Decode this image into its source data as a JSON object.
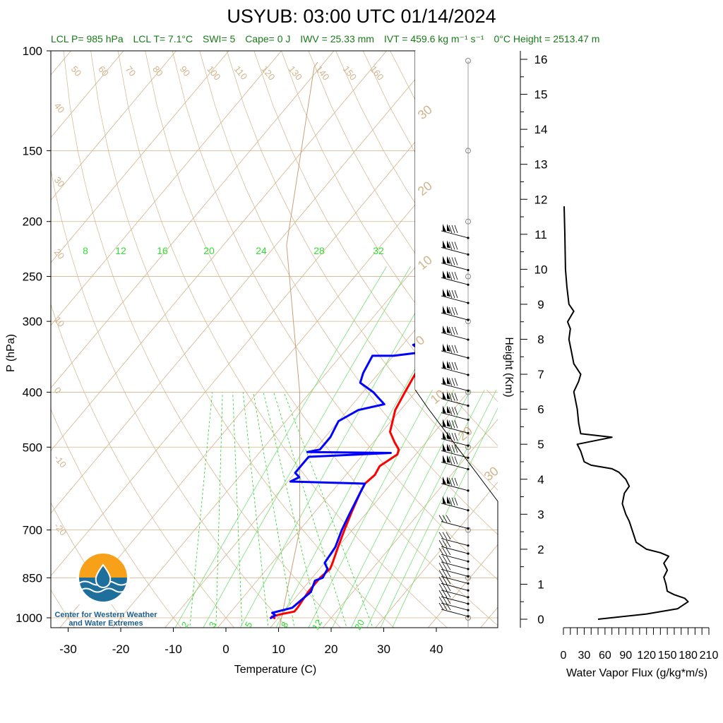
{
  "page": {
    "title": "USYUB: 03:00 UTC 01/14/2024",
    "stats": {
      "lcl_p": "LCL P= 985 hPa",
      "lcl_t": "LCL T= 7.1°C",
      "swi": "SWI= 5",
      "cape": "Cape= 0 J",
      "iwv": "IWV = 25.33 mm",
      "ivt": "IVT = 459.6 kg m⁻¹ s⁻¹",
      "freezing": "0°C Height = 2513.47 m"
    },
    "logo": {
      "line1": "Center for Western Weather",
      "line2": "and Water Extremes",
      "icon": "water-drop-logo-icon"
    },
    "colors": {
      "temperature": "#ff0000",
      "dewpoint": "#0000ff",
      "isotherm": "#d2b48c",
      "mixing_ratio": "#00cc00",
      "stats_text": "#1a7a1a"
    }
  },
  "chart_data": [
    {
      "type": "line",
      "subtype": "skew-t",
      "xlabel": "Temperature (C)",
      "ylabel": "P (hPa)",
      "xlim": [
        -35,
        52
      ],
      "ylim": [
        1050,
        100
      ],
      "y_scale": "log",
      "x_ticks": [
        -30,
        -20,
        -10,
        0,
        10,
        20,
        30,
        40
      ],
      "y_ticks": [
        100,
        150,
        200,
        250,
        300,
        400,
        500,
        700,
        850,
        1000
      ],
      "isotherm_labels_top": [
        50,
        60,
        70,
        80,
        90,
        100,
        110,
        120,
        130,
        140,
        150,
        160
      ],
      "isotherm_labels_left": [
        40,
        30,
        20,
        10,
        0,
        -10,
        -20
      ],
      "mixing_ratio_labels_top": [
        8,
        12,
        16,
        20,
        24,
        28,
        32
      ],
      "mixing_ratio_labels_bottom": [
        2,
        3,
        5,
        8,
        12,
        20
      ],
      "wind_speed_rings": [
        30,
        20,
        10,
        0,
        10,
        20,
        30
      ],
      "series": [
        {
          "name": "Temperature",
          "color": "#ff0000",
          "points": [
            [
              9.5,
              1003
            ],
            [
              8.5,
              995
            ],
            [
              10,
              985
            ],
            [
              12,
              975
            ],
            [
              12,
              960
            ],
            [
              11.5,
              900
            ],
            [
              11.5,
              850
            ],
            [
              12,
              820
            ],
            [
              11.5,
              800
            ],
            [
              10,
              750
            ],
            [
              8.5,
              700
            ],
            [
              7,
              650
            ],
            [
              5.5,
              600
            ],
            [
              5,
              580
            ],
            [
              5.5,
              560
            ],
            [
              5,
              540
            ],
            [
              6.5,
              515
            ],
            [
              6,
              505
            ],
            [
              4,
              490
            ],
            [
              1.5,
              470
            ],
            [
              -1,
              430
            ],
            [
              -2,
              400
            ],
            [
              -3,
              370
            ],
            [
              -3,
              350
            ],
            [
              -2.5,
              340
            ],
            [
              -3,
              320
            ],
            [
              -3.5,
              300
            ],
            [
              -4.5,
              280
            ],
            [
              -5.5,
              260
            ],
            [
              -5,
              245
            ],
            [
              -6.5,
              230
            ],
            [
              -7,
              218
            ],
            [
              -5,
              210
            ],
            [
              -3,
              207
            ],
            [
              -2,
              200
            ]
          ]
        },
        {
          "name": "Dewpoint",
          "color": "#0000ff",
          "points": [
            [
              8.5,
              1003
            ],
            [
              9,
              990
            ],
            [
              8,
              980
            ],
            [
              11,
              960
            ],
            [
              12,
              900
            ],
            [
              11,
              860
            ],
            [
              12,
              850
            ],
            [
              11.5,
              820
            ],
            [
              10,
              800
            ],
            [
              9.5,
              750
            ],
            [
              8,
              700
            ],
            [
              7,
              660
            ],
            [
              5.5,
              600
            ],
            [
              5,
              580
            ],
            [
              -9.5,
              575
            ],
            [
              -8.5,
              565
            ],
            [
              -10,
              555
            ],
            [
              -10,
              520
            ],
            [
              5,
              512
            ],
            [
              -11,
              510
            ],
            [
              -9,
              505
            ],
            [
              -9,
              480
            ],
            [
              -10,
              450
            ],
            [
              -8,
              430
            ],
            [
              -4,
              420
            ],
            [
              -6,
              410
            ],
            [
              -8,
              400
            ],
            [
              -12,
              385
            ],
            [
              -13,
              370
            ],
            [
              -14,
              345
            ],
            [
              -10,
              345
            ],
            [
              -5,
              340
            ],
            [
              -8,
              330
            ],
            [
              -4,
              320
            ],
            [
              -5,
              310
            ],
            [
              -8,
              300
            ],
            [
              -12,
              285
            ],
            [
              -14,
              270
            ],
            [
              -16,
              255
            ],
            [
              -17,
              245
            ],
            [
              -18,
              235
            ],
            [
              -19,
              220
            ],
            [
              -18,
              210
            ],
            [
              -17,
              200
            ]
          ]
        }
      ],
      "wind_barbs_hpa": [
        1000,
        975,
        950,
        925,
        900,
        875,
        850,
        825,
        800,
        775,
        750,
        700,
        650,
        600,
        550,
        525,
        500,
        475,
        450,
        425,
        400,
        375,
        350,
        325,
        300,
        280,
        260,
        245,
        230,
        215
      ]
    },
    {
      "type": "line",
      "xlabel": "Water Vapor Flux (g/kg*m/s)",
      "ylabel": "Height (Km)",
      "xlim": [
        0,
        210
      ],
      "ylim": [
        -0.3,
        16.3
      ],
      "x_ticks": [
        0,
        30,
        60,
        90,
        120,
        150,
        180,
        210
      ],
      "y_ticks": [
        0,
        1,
        2,
        3,
        4,
        5,
        6,
        7,
        8,
        9,
        10,
        11,
        12,
        13,
        14,
        15,
        16
      ],
      "series": [
        {
          "name": "",
          "color": "#000000",
          "points": [
            [
              50,
              0.0
            ],
            [
              120,
              0.15
            ],
            [
              165,
              0.3
            ],
            [
              180,
              0.5
            ],
            [
              175,
              0.6
            ],
            [
              160,
              0.7
            ],
            [
              150,
              0.8
            ],
            [
              148,
              1.0
            ],
            [
              145,
              1.2
            ],
            [
              150,
              1.4
            ],
            [
              145,
              1.6
            ],
            [
              152,
              1.8
            ],
            [
              140,
              1.9
            ],
            [
              120,
              2.0
            ],
            [
              105,
              2.2
            ],
            [
              100,
              2.5
            ],
            [
              95,
              2.8
            ],
            [
              90,
              3.0
            ],
            [
              85,
              3.3
            ],
            [
              88,
              3.6
            ],
            [
              95,
              3.8
            ],
            [
              90,
              4.0
            ],
            [
              80,
              4.2
            ],
            [
              70,
              4.3
            ],
            [
              40,
              4.4
            ],
            [
              30,
              4.5
            ],
            [
              25,
              4.8
            ],
            [
              20,
              5.0
            ],
            [
              70,
              5.2
            ],
            [
              25,
              5.3
            ],
            [
              22,
              5.6
            ],
            [
              20,
              6.0
            ],
            [
              15,
              6.5
            ],
            [
              22,
              6.8
            ],
            [
              25,
              7.0
            ],
            [
              15,
              7.3
            ],
            [
              12,
              7.6
            ],
            [
              8,
              8.0
            ],
            [
              10,
              8.3
            ],
            [
              6,
              8.5
            ],
            [
              15,
              8.8
            ],
            [
              8,
              9.0
            ],
            [
              5,
              9.5
            ],
            [
              3,
              10.0
            ],
            [
              2,
              11.0
            ],
            [
              1,
              11.8
            ]
          ]
        }
      ]
    }
  ]
}
